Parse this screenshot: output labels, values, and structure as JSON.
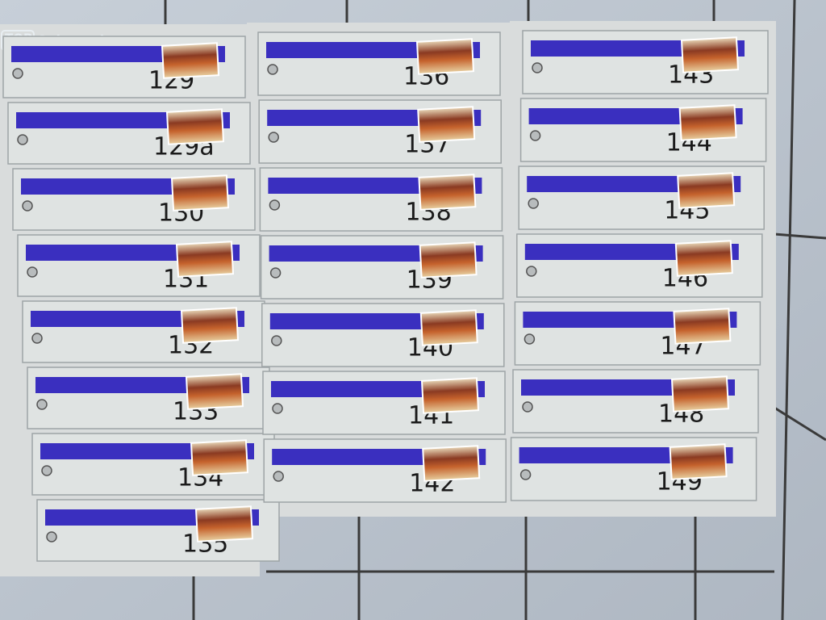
{
  "watermark": {
    "badge": "TOP",
    "text": "Ogłoszenia"
  },
  "columns": [
    {
      "boxes": [
        "129",
        "129a",
        "130",
        "131",
        "132",
        "133",
        "134",
        "135"
      ]
    },
    {
      "boxes": [
        "136",
        "137",
        "138",
        "139",
        "140",
        "141",
        "142"
      ]
    },
    {
      "boxes": [
        "143",
        "144",
        "145",
        "146",
        "147",
        "148",
        "149"
      ]
    }
  ]
}
